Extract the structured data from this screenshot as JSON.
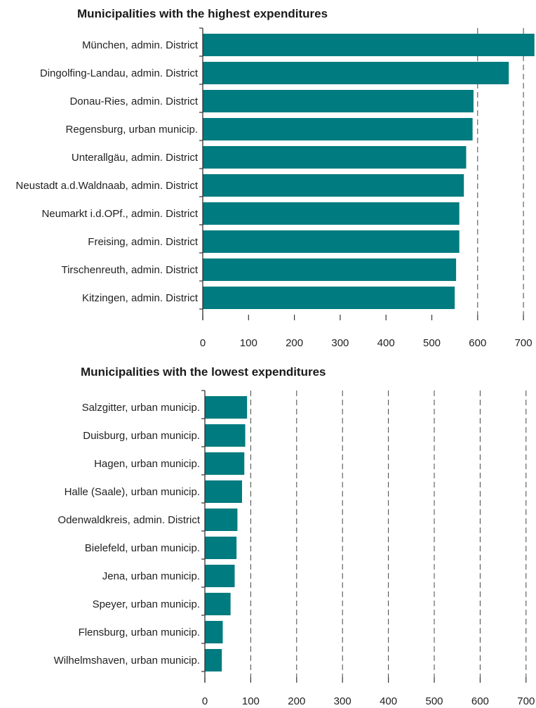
{
  "colors": {
    "bar": "#007b7f",
    "text": "#222222"
  },
  "chart_data": [
    {
      "type": "bar",
      "orientation": "horizontal",
      "title": "Municipalities with the highest expenditures",
      "categories": [
        "München, admin. District",
        "Dingolfing-Landau, admin. District",
        "Donau-Ries, admin. District",
        "Regensburg, urban municip.",
        "Unterallgäu, admin. District",
        "Neustadt a.d.Waldnaab, admin. District",
        "Neumarkt i.d.OPf., admin. District",
        "Freising, admin. District",
        "Tirschenreuth, admin. District",
        "Kitzingen, admin. District"
      ],
      "values": [
        724,
        668,
        591,
        589,
        575,
        570,
        560,
        560,
        553,
        550
      ],
      "xlim": [
        0,
        724
      ],
      "xticks": [
        "0",
        "100",
        "200",
        "300",
        "400",
        "500",
        "600",
        "700"
      ],
      "grid": "vertical dashed at 600 and 700"
    },
    {
      "type": "bar",
      "orientation": "horizontal",
      "title": "Municipalities with the lowest expenditures",
      "categories": [
        "Salzgitter, urban municip.",
        "Duisburg, urban municip.",
        "Hagen, urban municip.",
        "Halle (Saale), urban municip.",
        "Odenwaldkreis, admin. District",
        "Bielefeld, urban municip.",
        "Jena, urban municip.",
        "Speyer, urban municip.",
        "Flensburg, urban municip.",
        "Wilhelmshaven, urban municip."
      ],
      "values": [
        92,
        88,
        86,
        81,
        71,
        69,
        65,
        56,
        39,
        37
      ],
      "xlim": [
        0,
        700
      ],
      "xticks": [
        "0",
        "100",
        "200",
        "300",
        "400",
        "500",
        "600",
        "700"
      ],
      "grid": "vertical dashed at 100 to 700"
    }
  ]
}
